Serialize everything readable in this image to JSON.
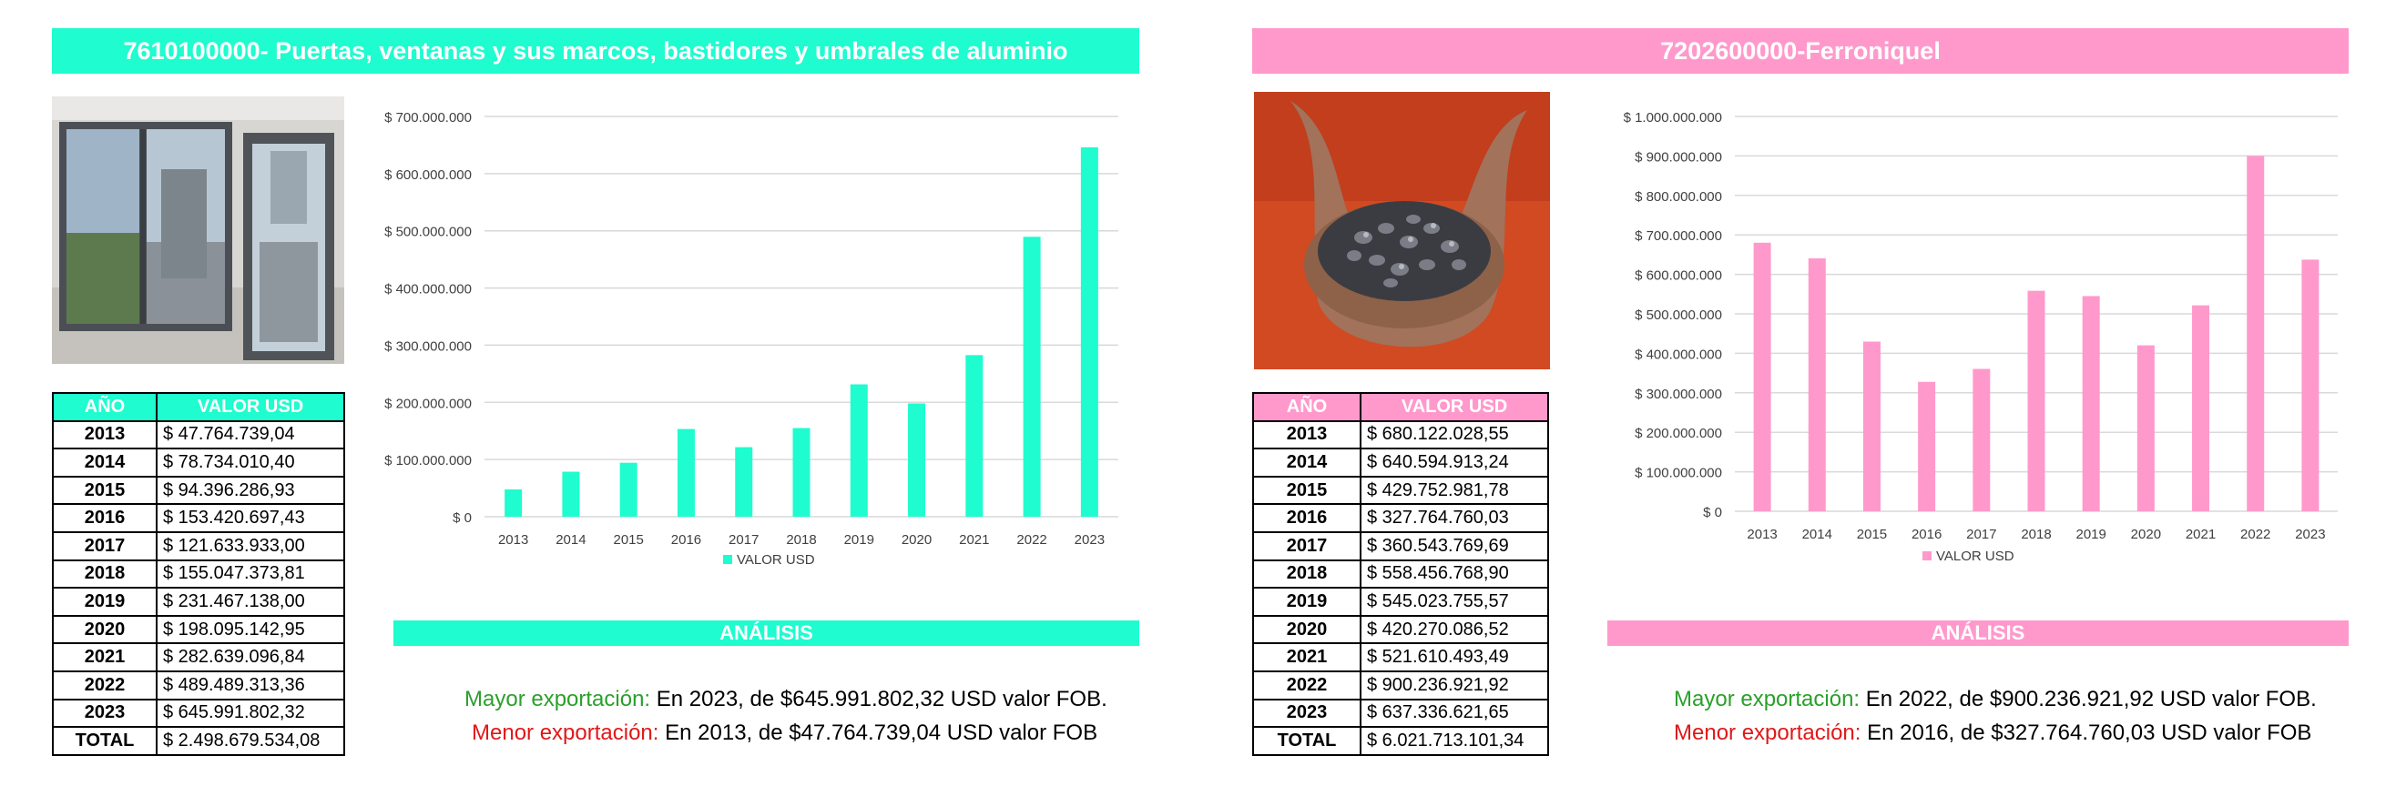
{
  "panels": [
    {
      "title": "7610100000- Puertas, ventanas y sus marcos, bastidores y umbrales de aluminio",
      "accent": "#1ffccf",
      "photo_icon": "aluminium-window-photo",
      "table": {
        "col_year": "AÑO",
        "col_value": "VALOR USD",
        "rows": [
          {
            "year": "2013",
            "value": "$ 47.764.739,04"
          },
          {
            "year": "2014",
            "value": "$ 78.734.010,40"
          },
          {
            "year": "2015",
            "value": "$ 94.396.286,93"
          },
          {
            "year": "2016",
            "value": "$ 153.420.697,43"
          },
          {
            "year": "2017",
            "value": "$ 121.633.933,00"
          },
          {
            "year": "2018",
            "value": "$ 155.047.373,81"
          },
          {
            "year": "2019",
            "value": "$ 231.467.138,00"
          },
          {
            "year": "2020",
            "value": "$ 198.095.142,95"
          },
          {
            "year": "2021",
            "value": "$ 282.639.096,84"
          },
          {
            "year": "2022",
            "value": "$ 489.489.313,36"
          },
          {
            "year": "2023",
            "value": "$ 645.991.802,32"
          }
        ],
        "total_label": "TOTAL",
        "total_value": "$ 2.498.679.534,08"
      },
      "analysis": {
        "heading": "ANÁLISIS",
        "max_label": "Mayor exportación:",
        "max_text": " En 2023, de $645.991.802,32 USD valor FOB.",
        "min_label": "Menor exportación:",
        "min_text": " En 2013, de $47.764.739,04 USD valor FOB"
      }
    },
    {
      "title": "7202600000-Ferroniquel",
      "accent": "#ff99cc",
      "photo_icon": "ferronickel-hands-photo",
      "table": {
        "col_year": "AÑO",
        "col_value": "VALOR USD",
        "rows": [
          {
            "year": "2013",
            "value": "$ 680.122.028,55"
          },
          {
            "year": "2014",
            "value": "$ 640.594.913,24"
          },
          {
            "year": "2015",
            "value": "$ 429.752.981,78"
          },
          {
            "year": "2016",
            "value": "$ 327.764.760,03"
          },
          {
            "year": "2017",
            "value": "$ 360.543.769,69"
          },
          {
            "year": "2018",
            "value": "$ 558.456.768,90"
          },
          {
            "year": "2019",
            "value": "$ 545.023.755,57"
          },
          {
            "year": "2020",
            "value": "$ 420.270.086,52"
          },
          {
            "year": "2021",
            "value": "$ 521.610.493,49"
          },
          {
            "year": "2022",
            "value": "$ 900.236.921,92"
          },
          {
            "year": "2023",
            "value": "$ 637.336.621,65"
          }
        ],
        "total_label": "TOTAL",
        "total_value": "$ 6.021.713.101,34"
      },
      "analysis": {
        "heading": "ANÁLISIS",
        "max_label": "Mayor exportación:",
        "max_text": " En 2022, de $900.236.921,92 USD valor FOB.",
        "min_label": "Menor exportación:",
        "min_text": " En 2016, de $327.764.760,03 USD valor FOB"
      }
    }
  ],
  "chart_data": [
    {
      "type": "bar",
      "categories": [
        "2013",
        "2014",
        "2015",
        "2016",
        "2017",
        "2018",
        "2019",
        "2020",
        "2021",
        "2022",
        "2023"
      ],
      "series": [
        {
          "name": "VALOR USD",
          "values": [
            47764739.04,
            78734010.4,
            94396286.93,
            153420697.43,
            121633933.0,
            155047373.81,
            231467138.0,
            198095142.95,
            282639096.84,
            489489313.36,
            645991802.32
          ]
        }
      ],
      "ylim": [
        0,
        700000000
      ],
      "yticks": [
        "$ 0",
        "$ 100.000.000",
        "$ 200.000.000",
        "$ 300.000.000",
        "$ 400.000.000",
        "$ 500.000.000",
        "$ 600.000.000",
        "$ 700.000.000"
      ],
      "grid": true,
      "legend_position": "bottom",
      "color": "#1ffccf"
    },
    {
      "type": "bar",
      "categories": [
        "2013",
        "2014",
        "2015",
        "2016",
        "2017",
        "2018",
        "2019",
        "2020",
        "2021",
        "2022",
        "2023"
      ],
      "series": [
        {
          "name": "VALOR USD",
          "values": [
            680122028.55,
            640594913.24,
            429752981.78,
            327764760.03,
            360543769.69,
            558456768.9,
            545023755.57,
            420270086.52,
            521610493.49,
            900236921.92,
            637336621.65
          ]
        }
      ],
      "ylim": [
        0,
        1000000000
      ],
      "yticks": [
        "$ 0",
        "$ 100.000.000",
        "$ 200.000.000",
        "$ 300.000.000",
        "$ 400.000.000",
        "$ 500.000.000",
        "$ 600.000.000",
        "$ 700.000.000",
        "$ 800.000.000",
        "$ 900.000.000",
        "$ 1.000.000.000"
      ],
      "grid": true,
      "legend_position": "bottom",
      "color": "#ff99cc"
    }
  ]
}
